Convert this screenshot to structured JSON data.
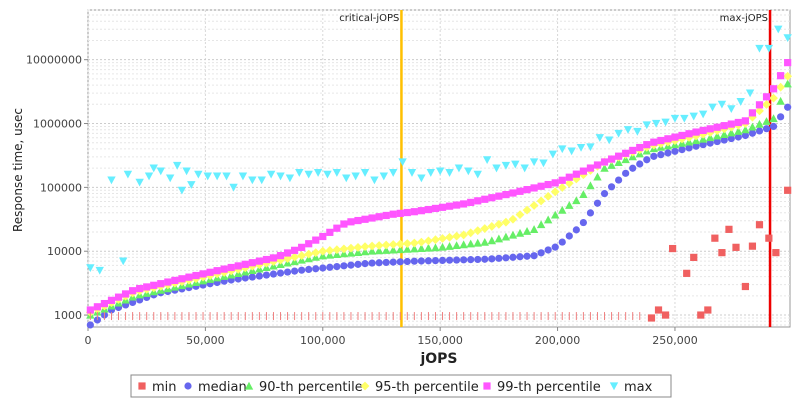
{
  "chart_data": {
    "type": "scatter",
    "title": "",
    "xlabel": "jOPS",
    "ylabel": "Response time, usec",
    "xlim": [
      0,
      299000
    ],
    "ylim": [
      650,
      60000000
    ],
    "yscale": "log",
    "grid": true,
    "legend_position": "bottom",
    "x_ticks": [
      0,
      50000,
      100000,
      150000,
      200000,
      250000
    ],
    "x_tick_labels": [
      "0",
      "50,000",
      "100,000",
      "150,000",
      "200,000",
      "250,000"
    ],
    "y_ticks": [
      1000,
      10000,
      100000,
      1000000,
      10000000
    ],
    "y_tick_labels": [
      "1000",
      "10000",
      "100000",
      "1000000",
      "10000000"
    ],
    "markers": [
      {
        "label": "critical-jOPS",
        "x": 133500,
        "color": "#ffc000"
      },
      {
        "label": "max-jOPS",
        "x": 290500,
        "color": "#ee0000"
      }
    ],
    "series": [
      {
        "name": "min",
        "color": "#f06060",
        "shape": "square",
        "points": [
          [
            240000,
            900
          ],
          [
            243000,
            1200
          ],
          [
            246000,
            1000
          ],
          [
            249000,
            11000
          ],
          [
            255000,
            4500
          ],
          [
            258000,
            8000
          ],
          [
            261000,
            1000
          ],
          [
            264000,
            1200
          ],
          [
            267000,
            16000
          ],
          [
            270000,
            9500
          ],
          [
            273000,
            22000
          ],
          [
            276000,
            11500
          ],
          [
            280000,
            2800
          ],
          [
            283000,
            12000
          ],
          [
            286000,
            26000
          ],
          [
            290000,
            16000
          ],
          [
            293000,
            9500
          ],
          [
            298000,
            90000
          ]
        ]
      },
      {
        "name": "median",
        "color": "#6666ee",
        "shape": "circle",
        "start": 700,
        "knots": [
          [
            1000,
            700
          ],
          [
            10000,
            1200
          ],
          [
            30000,
            2200
          ],
          [
            60000,
            3500
          ],
          [
            90000,
            5000
          ],
          [
            120000,
            6500
          ],
          [
            140000,
            7000
          ],
          [
            170000,
            7500
          ],
          [
            190000,
            8500
          ],
          [
            200000,
            12000
          ],
          [
            210000,
            25000
          ],
          [
            220000,
            80000
          ],
          [
            230000,
            180000
          ],
          [
            240000,
            300000
          ],
          [
            260000,
            450000
          ],
          [
            280000,
            650000
          ],
          [
            292000,
            900000
          ],
          [
            298000,
            1800000
          ]
        ]
      },
      {
        "name": "90-th percentile",
        "color": "#66ee66",
        "shape": "triangle-up",
        "start": 1000,
        "knots": [
          [
            1000,
            1000
          ],
          [
            20000,
            2000
          ],
          [
            50000,
            3500
          ],
          [
            80000,
            6000
          ],
          [
            100000,
            8500
          ],
          [
            120000,
            10000
          ],
          [
            150000,
            11500
          ],
          [
            170000,
            14000
          ],
          [
            190000,
            22000
          ],
          [
            210000,
            70000
          ],
          [
            220000,
            200000
          ],
          [
            240000,
            400000
          ],
          [
            260000,
            550000
          ],
          [
            280000,
            800000
          ],
          [
            292000,
            1200000
          ],
          [
            298000,
            4200000
          ]
        ]
      },
      {
        "name": "95-th percentile",
        "color": "#ffff66",
        "shape": "diamond",
        "start": 1100,
        "knots": [
          [
            1000,
            1100
          ],
          [
            20000,
            2300
          ],
          [
            50000,
            4000
          ],
          [
            80000,
            7000
          ],
          [
            100000,
            10000
          ],
          [
            120000,
            12000
          ],
          [
            140000,
            13500
          ],
          [
            160000,
            18000
          ],
          [
            180000,
            30000
          ],
          [
            200000,
            90000
          ],
          [
            220000,
            250000
          ],
          [
            240000,
            450000
          ],
          [
            260000,
            650000
          ],
          [
            280000,
            1000000
          ],
          [
            292000,
            2500000
          ],
          [
            298000,
            5500000
          ]
        ]
      },
      {
        "name": "99-th percentile",
        "color": "#ff55ff",
        "shape": "square",
        "start": 1200,
        "knots": [
          [
            1000,
            1200
          ],
          [
            20000,
            2500
          ],
          [
            50000,
            4500
          ],
          [
            80000,
            8000
          ],
          [
            90000,
            11000
          ],
          [
            100000,
            17000
          ],
          [
            110000,
            28000
          ],
          [
            130000,
            38000
          ],
          [
            140000,
            42000
          ],
          [
            160000,
            55000
          ],
          [
            180000,
            80000
          ],
          [
            200000,
            120000
          ],
          [
            220000,
            250000
          ],
          [
            240000,
            500000
          ],
          [
            260000,
            750000
          ],
          [
            280000,
            1100000
          ],
          [
            292000,
            3500000
          ],
          [
            298000,
            9000000
          ]
        ]
      },
      {
        "name": "max",
        "color": "#66eeff",
        "shape": "triangle-down",
        "start": 5500,
        "points": [
          [
            1000,
            5500
          ],
          [
            5000,
            5000
          ],
          [
            10000,
            130000
          ],
          [
            15000,
            7000
          ],
          [
            17000,
            160000
          ],
          [
            22000,
            120000
          ],
          [
            26000,
            150000
          ],
          [
            28000,
            200000
          ],
          [
            31000,
            180000
          ],
          [
            35000,
            140000
          ],
          [
            38000,
            220000
          ],
          [
            40000,
            90000
          ],
          [
            42000,
            180000
          ],
          [
            44000,
            110000
          ],
          [
            47000,
            160000
          ],
          [
            51000,
            150000
          ],
          [
            55000,
            150000
          ],
          [
            59000,
            150000
          ],
          [
            62000,
            100000
          ],
          [
            66000,
            150000
          ],
          [
            70000,
            130000
          ],
          [
            74000,
            130000
          ],
          [
            78000,
            160000
          ],
          [
            82000,
            150000
          ],
          [
            86000,
            140000
          ],
          [
            90000,
            170000
          ],
          [
            94000,
            160000
          ],
          [
            98000,
            170000
          ],
          [
            102000,
            160000
          ],
          [
            106000,
            170000
          ],
          [
            110000,
            140000
          ],
          [
            114000,
            150000
          ],
          [
            118000,
            170000
          ],
          [
            122000,
            130000
          ],
          [
            126000,
            150000
          ],
          [
            130000,
            170000
          ],
          [
            134000,
            250000
          ],
          [
            138000,
            170000
          ],
          [
            142000,
            140000
          ],
          [
            146000,
            170000
          ],
          [
            150000,
            180000
          ],
          [
            154000,
            170000
          ],
          [
            158000,
            200000
          ],
          [
            162000,
            180000
          ],
          [
            166000,
            160000
          ],
          [
            170000,
            270000
          ],
          [
            174000,
            200000
          ],
          [
            178000,
            220000
          ],
          [
            182000,
            230000
          ],
          [
            186000,
            200000
          ],
          [
            190000,
            250000
          ],
          [
            194000,
            240000
          ],
          [
            198000,
            330000
          ],
          [
            202000,
            400000
          ],
          [
            206000,
            370000
          ],
          [
            210000,
            420000
          ],
          [
            214000,
            430000
          ],
          [
            218000,
            600000
          ],
          [
            222000,
            550000
          ],
          [
            226000,
            700000
          ],
          [
            230000,
            800000
          ],
          [
            234000,
            750000
          ],
          [
            238000,
            950000
          ],
          [
            242000,
            1000000
          ],
          [
            246000,
            1050000
          ],
          [
            250000,
            1200000
          ],
          [
            254000,
            1200000
          ],
          [
            258000,
            1300000
          ],
          [
            262000,
            1400000
          ],
          [
            266000,
            1800000
          ],
          [
            270000,
            2000000
          ],
          [
            274000,
            1700000
          ],
          [
            278000,
            2200000
          ],
          [
            282000,
            3000000
          ],
          [
            286000,
            15000000
          ],
          [
            290000,
            15000000
          ],
          [
            294000,
            30000000
          ],
          [
            298000,
            22000000
          ]
        ]
      }
    ]
  }
}
